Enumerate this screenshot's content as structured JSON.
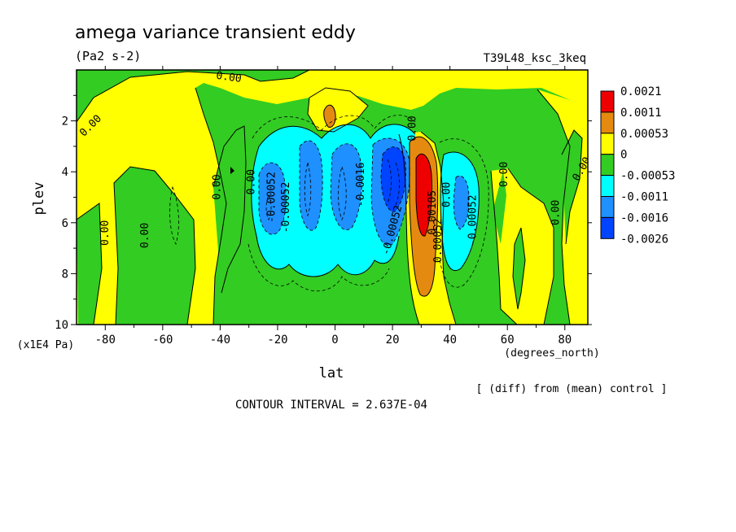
{
  "header": {
    "title": "amega variance transient eddy",
    "units": "(Pa2 s-2)",
    "run_id": "T39L48_ksc_3keq"
  },
  "axes": {
    "xlabel": "lat",
    "x_unit": "(degrees_north)",
    "ylabel": "plev",
    "y_unit": "(x1E4 Pa)"
  },
  "footer": {
    "diff_note": "[ (diff) from (mean) control ]",
    "contour_interval": "CONTOUR INTERVAL = 2.637E-04"
  },
  "colors": {
    "red": "#ee0000",
    "orange": "#e58a10",
    "yellow": "#ffff00",
    "green": "#33cc22",
    "cyan": "#00ffff",
    "midblue": "#1e90ff",
    "blue": "#0044ff"
  },
  "chart_data": {
    "type": "heatmap",
    "title": "amega variance transient eddy",
    "subtitle": "(Pa2 s-2)",
    "xlabel": "lat",
    "ylabel": "plev",
    "xlim": [
      -90,
      88
    ],
    "ylim": [
      10,
      0
    ],
    "x_ticks": [
      -80,
      -60,
      -40,
      -20,
      0,
      20,
      40,
      60,
      80
    ],
    "y_ticks": [
      2,
      4,
      6,
      8,
      10
    ],
    "colorbar": {
      "levels": [
        "0.0021",
        "0.0011",
        "0.00053",
        "0",
        "-0.00053",
        "-0.0011",
        "-0.0016",
        "-0.0026"
      ],
      "colors": [
        "#ee0000",
        "#e58a10",
        "#ffff00",
        "#33cc22",
        "#00ffff",
        "#1e90ff",
        "#0044ff"
      ]
    },
    "contour_labels": [
      {
        "text": "0.00",
        "lat": -85,
        "p": 2.2,
        "rot": -45
      },
      {
        "text": "0.00",
        "lat": -37,
        "p": 0.3,
        "rot": 8
      },
      {
        "text": "0.00",
        "lat": -80,
        "p": 6.4,
        "rot": -90
      },
      {
        "text": "0.00",
        "lat": -66,
        "p": 6.5,
        "rot": -90
      },
      {
        "text": "0.00",
        "lat": -41,
        "p": 4.6,
        "rot": -90
      },
      {
        "text": "0.00",
        "lat": -29,
        "p": 4.4,
        "rot": -90
      },
      {
        "text": "-0.00052",
        "lat": -22,
        "p": 5.0,
        "rot": -90
      },
      {
        "text": "-0.00052",
        "lat": -17,
        "p": 5.4,
        "rot": -90
      },
      {
        "text": "-0.0016",
        "lat": 9,
        "p": 4.5,
        "rot": -90
      },
      {
        "text": "-0.00052",
        "lat": 20,
        "p": 6.3,
        "rot": -75
      },
      {
        "text": "0.00",
        "lat": 27,
        "p": 2.3,
        "rot": -90
      },
      {
        "text": "0.00105",
        "lat": 34,
        "p": 5.6,
        "rot": -90
      },
      {
        "text": "0.00052",
        "lat": 36,
        "p": 6.7,
        "rot": -90
      },
      {
        "text": "0.00",
        "lat": 39,
        "p": 4.9,
        "rot": -90
      },
      {
        "text": "-0.00052",
        "lat": 48,
        "p": 5.9,
        "rot": -90
      },
      {
        "text": "0.00",
        "lat": 59,
        "p": 4.1,
        "rot": -90
      },
      {
        "text": "0.00",
        "lat": 77,
        "p": 5.6,
        "rot": -90
      },
      {
        "text": "0.00",
        "lat": 86,
        "p": 3.9,
        "rot": -60
      }
    ]
  }
}
